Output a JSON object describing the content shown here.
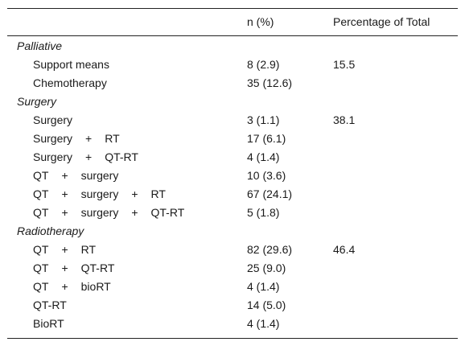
{
  "header": {
    "label": "",
    "n": "n (%)",
    "pct": "Percentage of Total"
  },
  "sections": [
    {
      "title": "Palliative",
      "rows": [
        {
          "label": [
            "Support means"
          ],
          "n": "8 (2.9)",
          "pct": "15.5"
        },
        {
          "label": [
            "Chemotherapy"
          ],
          "n": "35 (12.6)",
          "pct": ""
        }
      ]
    },
    {
      "title": "Surgery",
      "rows": [
        {
          "label": [
            "Surgery"
          ],
          "n": "3 (1.1)",
          "pct": "38.1"
        },
        {
          "label": [
            "Surgery",
            "+",
            "RT"
          ],
          "n": "17 (6.1)",
          "pct": ""
        },
        {
          "label": [
            "Surgery",
            "+",
            "QT-RT"
          ],
          "n": "4 (1.4)",
          "pct": ""
        },
        {
          "label": [
            "QT",
            "+",
            "surgery"
          ],
          "n": "10 (3.6)",
          "pct": ""
        },
        {
          "label": [
            "QT",
            "+",
            "surgery",
            "+",
            "RT"
          ],
          "n": "67 (24.1)",
          "pct": ""
        },
        {
          "label": [
            "QT",
            "+",
            "surgery",
            "+",
            "QT-RT"
          ],
          "n": "5 (1.8)",
          "pct": ""
        }
      ]
    },
    {
      "title": "Radiotherapy",
      "rows": [
        {
          "label": [
            "QT",
            "+",
            "RT"
          ],
          "n": "82 (29.6)",
          "pct": "46.4"
        },
        {
          "label": [
            "QT",
            "+",
            "QT-RT"
          ],
          "n": "25 (9.0)",
          "pct": ""
        },
        {
          "label": [
            "QT",
            "+",
            "bioRT"
          ],
          "n": "4 (1.4)",
          "pct": ""
        },
        {
          "label": [
            "QT-RT"
          ],
          "n": "14 (5.0)",
          "pct": ""
        },
        {
          "label": [
            "BioRT"
          ],
          "n": "4 (1.4)",
          "pct": ""
        }
      ]
    }
  ]
}
